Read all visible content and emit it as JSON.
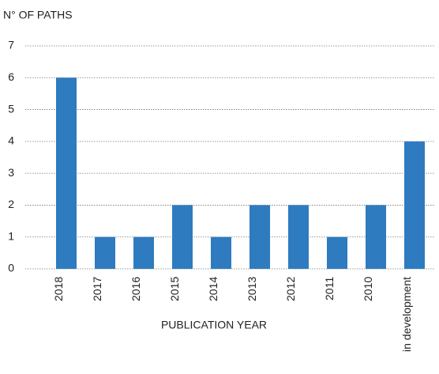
{
  "chart_data": {
    "type": "bar",
    "y_label": "N° OF PATHS",
    "x_label": "PUBLICATION YEAR",
    "categories": [
      "2018",
      "2017",
      "2016",
      "2015",
      "2014",
      "2013",
      "2012",
      "2011",
      "2010",
      "in development"
    ],
    "values": [
      6,
      1,
      1,
      2,
      1,
      2,
      2,
      1,
      2,
      4
    ],
    "color": "#2e7bbf",
    "ylim": [
      0,
      7
    ],
    "yticks": [
      0,
      1,
      2,
      3,
      4,
      5,
      6,
      7
    ],
    "grid": true
  }
}
